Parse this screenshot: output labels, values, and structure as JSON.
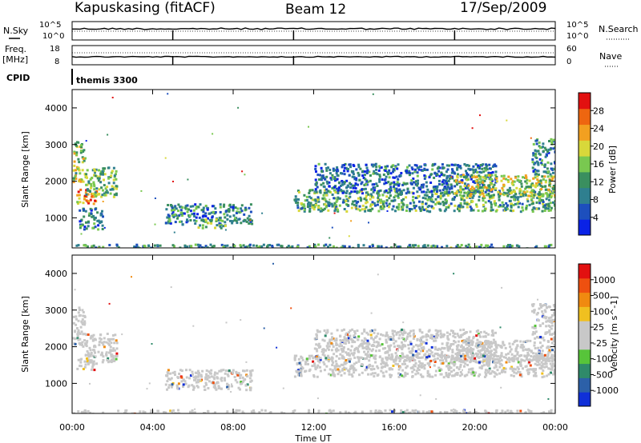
{
  "header": {
    "site": "Kapuskasing (fitACF)",
    "beam": "Beam 12",
    "date": "17/Sep/2009"
  },
  "noise_panel": {
    "left_label": "N.Sky",
    "right_label": "N.Search",
    "left_ticks": [
      "10^5",
      "10^0"
    ],
    "right_ticks": [
      "10^5",
      "10^0"
    ]
  },
  "freq_panel": {
    "left_label_top": "Freq.",
    "left_label_bottom": "[MHz]",
    "right_label": "Nave",
    "left_ticks": [
      "18",
      "8"
    ],
    "right_ticks": [
      "60",
      "0"
    ]
  },
  "cpid": {
    "label": "CPID",
    "value": "themis 3300"
  },
  "chart_data": [
    {
      "type": "heatmap",
      "quantity": "power",
      "ylabel": "Slant Range [km]",
      "xlabel": "",
      "ylim": [
        180,
        4500
      ],
      "yticks": [
        1000,
        2000,
        3000,
        4000
      ],
      "xlim_hours": [
        0,
        24
      ],
      "colorbar_label": "Power [dB]",
      "colorbar_ticks": [
        "4",
        "8",
        "12",
        "16",
        "20",
        "24",
        "28"
      ],
      "colorbar_colors": [
        "#0a22e6",
        "#1d4fbd",
        "#2f7f8f",
        "#3a8f5f",
        "#79c850",
        "#d8d83a",
        "#f2a020",
        "#ee6610",
        "#e21010"
      ],
      "regions": [
        {
          "t0": 0.0,
          "t1": 0.6,
          "r0": 2000,
          "r1": 3100,
          "level": 0.55
        },
        {
          "t0": 0.2,
          "t1": 1.2,
          "r0": 1400,
          "r1": 1800,
          "level": 0.75
        },
        {
          "t0": 0.6,
          "t1": 2.2,
          "r0": 1600,
          "r1": 2400,
          "level": 0.45
        },
        {
          "t0": 0.3,
          "t1": 1.5,
          "r0": 700,
          "r1": 1300,
          "level": 0.3
        },
        {
          "t0": 4.6,
          "t1": 8.9,
          "r0": 850,
          "r1": 1400,
          "level": 0.3
        },
        {
          "t0": 6.2,
          "t1": 7.6,
          "r0": 750,
          "r1": 1000,
          "level": 0.45
        },
        {
          "t0": 11.0,
          "t1": 24.0,
          "r0": 1200,
          "r1": 1800,
          "level": 0.4
        },
        {
          "t0": 12.0,
          "t1": 21.0,
          "r0": 1700,
          "r1": 2500,
          "level": 0.25
        },
        {
          "t0": 19.0,
          "t1": 24.0,
          "r0": 1600,
          "r1": 2200,
          "level": 0.55
        },
        {
          "t0": 22.8,
          "t1": 24.0,
          "r0": 2200,
          "r1": 3200,
          "level": 0.3
        },
        {
          "t0": 0.0,
          "t1": 24.0,
          "r0": 180,
          "r1": 300,
          "level": 0.35
        }
      ]
    },
    {
      "type": "heatmap",
      "quantity": "velocity",
      "ylabel": "Slant Range [km]",
      "xlabel": "Time UT",
      "ylim": [
        180,
        4500
      ],
      "yticks": [
        1000,
        2000,
        3000,
        4000
      ],
      "xlim_hours": [
        0,
        24
      ],
      "xticks": [
        "00:00",
        "04:00",
        "08:00",
        "12:00",
        "16:00",
        "20:00",
        "00:00"
      ],
      "colorbar_label": "Velocity [m s^-1]",
      "colorbar_ticks": [
        "1000",
        "500",
        "100",
        "25",
        "-25",
        "-100",
        "-500",
        "-1000"
      ],
      "colorbar_colors": [
        "#1030d8",
        "#2c60a8",
        "#2f8a6a",
        "#57c43a",
        "#c8c8c8",
        "#c8c8c8",
        "#f0c020",
        "#f08a10",
        "#ee5010",
        "#e21010"
      ],
      "regions": [
        {
          "t0": 0.0,
          "t1": 0.6,
          "r0": 2000,
          "r1": 3100
        },
        {
          "t0": 0.2,
          "t1": 1.2,
          "r0": 1400,
          "r1": 1800
        },
        {
          "t0": 0.6,
          "t1": 2.2,
          "r0": 1600,
          "r1": 2400
        },
        {
          "t0": 4.6,
          "t1": 8.9,
          "r0": 850,
          "r1": 1400
        },
        {
          "t0": 11.0,
          "t1": 24.0,
          "r0": 1200,
          "r1": 1800
        },
        {
          "t0": 12.0,
          "t1": 21.0,
          "r0": 1700,
          "r1": 2500
        },
        {
          "t0": 19.0,
          "t1": 24.0,
          "r0": 1600,
          "r1": 2200
        },
        {
          "t0": 22.8,
          "t1": 24.0,
          "r0": 2200,
          "r1": 3200
        },
        {
          "t0": 0.0,
          "t1": 24.0,
          "r0": 180,
          "r1": 300
        }
      ]
    }
  ]
}
